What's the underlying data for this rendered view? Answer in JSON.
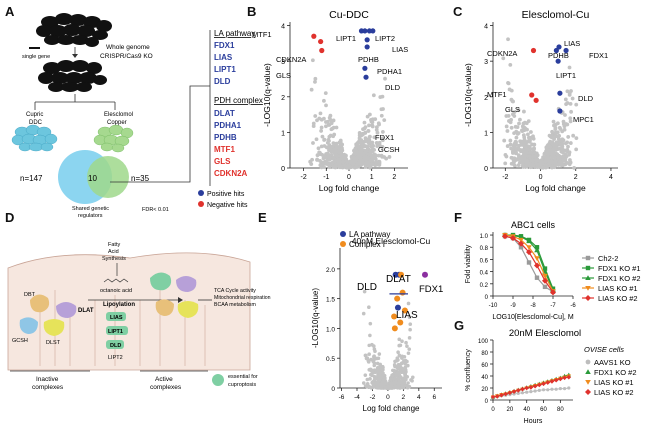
{
  "panel_letters": [
    "A",
    "B",
    "C",
    "D",
    "E",
    "F",
    "G"
  ],
  "panelA": {
    "single_gene": "single gene",
    "screen_line1": "Whole genome",
    "screen_line2": "CRISPR/Cas9 KO",
    "cupric_line1": "Cupric",
    "cupric_line2": "DDC",
    "eles_line1": "Elesclomol",
    "eles_line2": "Copper",
    "venn_left": "n=147",
    "venn_mid": "10",
    "venn_right": "n=35",
    "shared_line1": "Shared genetic",
    "shared_line2": "regulators",
    "fdr": "FDR< 0.01",
    "la_header": "LA pathway",
    "la_genes": [
      "FDX1",
      "LIAS",
      "LIPT1",
      "DLD"
    ],
    "pdh_header": "PDH complex",
    "pdh_genes": [
      "DLAT",
      "PDHA1",
      "PDHB"
    ],
    "neg_genes": [
      "MTF1",
      "GLS",
      "CDKN2A"
    ],
    "legend_pos": "Positive hits",
    "legend_neg": "Negative hits",
    "colors": {
      "pos": "#2a3d9c",
      "neg": "#e0322d",
      "venn_left": "#7fd0ee",
      "venn_right": "#9fd88b"
    }
  },
  "panelD": {
    "fatty1": "Fatty",
    "fatty2": "Acid",
    "fatty3": "Synthesis",
    "octanoic": "octanoic acid",
    "lipoylation": "Lipoylation",
    "chain": [
      "LIAS",
      "LIPT1",
      "DLD"
    ],
    "lipt2": "LIPT2",
    "dbt": "DBT",
    "dlat": "DLAT",
    "gcsh": "GCSH",
    "dlst": "DLST",
    "inactive1": "Inactive",
    "inactive2": "complexes",
    "active1": "Active",
    "active2": "complexes",
    "tca1": "TCA Cycle activity",
    "tca2": "Mitochondrial respiration",
    "tca3": "BCAA metabolism",
    "essential1": "essential for",
    "essential2": "cuproptosis"
  },
  "chart_data": [
    {
      "panel": "B",
      "type": "scatter",
      "title": "Cu-DDC",
      "xlabel": "Log fold change",
      "ylabel": "-LOG10(q-value)",
      "xlim": [
        -2.6,
        2.6
      ],
      "ylim": [
        0,
        4.1
      ],
      "xticks": [
        -2,
        -1,
        0,
        1,
        2
      ],
      "yticks": [
        0,
        1,
        2,
        3,
        4
      ],
      "series": [
        {
          "name": "Positive hits",
          "color": "#2a3d9c",
          "points": [
            {
              "label": "LIPT1",
              "x": 0.55,
              "y": 3.85
            },
            {
              "label": "LIPT2",
              "x": 0.9,
              "y": 3.85
            },
            {
              "label": "LIAS",
              "x": 1.05,
              "y": 3.85
            },
            {
              "label": "PDHB",
              "x": 0.7,
              "y": 3.85
            },
            {
              "label": "PDHA1",
              "x": 0.8,
              "y": 3.6
            },
            {
              "label": "DLD",
              "x": 0.8,
              "y": 3.4
            },
            {
              "label": "FDX1",
              "x": 0.7,
              "y": 2.8
            },
            {
              "label": "GCSH",
              "x": 0.75,
              "y": 2.55
            }
          ]
        },
        {
          "name": "Negative hits",
          "color": "#e0322d",
          "points": [
            {
              "label": "MTF1",
              "x": -1.55,
              "y": 3.7
            },
            {
              "label": "CDKN2A",
              "x": -1.25,
              "y": 3.55
            },
            {
              "label": "GLS",
              "x": -1.2,
              "y": 3.3
            }
          ]
        }
      ]
    },
    {
      "panel": "C",
      "type": "scatter",
      "title": "Elesclomol-Cu",
      "xlabel": "Log fold change",
      "ylabel": "-LOG10(q-value)",
      "xlim": [
        -2.7,
        4.4
      ],
      "ylim": [
        0,
        4.1
      ],
      "xticks": [
        -2,
        0,
        2,
        4
      ],
      "yticks": [
        0,
        1,
        2,
        3,
        4
      ],
      "series": [
        {
          "name": "Positive hits",
          "color": "#2a3d9c",
          "points": [
            {
              "label": "LIAS",
              "x": 1.05,
              "y": 3.4
            },
            {
              "label": "PDHB",
              "x": 0.9,
              "y": 3.3
            },
            {
              "label": "FDX1",
              "x": 1.45,
              "y": 3.3
            },
            {
              "label": "LIPT1",
              "x": 1.0,
              "y": 3.0
            },
            {
              "label": "DLD",
              "x": 1.1,
              "y": 2.1
            },
            {
              "label": "MPC1",
              "x": 1.1,
              "y": 1.6
            }
          ]
        },
        {
          "name": "Negative hits",
          "color": "#e0322d",
          "points": [
            {
              "label": "CDKN2A",
              "x": -0.4,
              "y": 3.3
            },
            {
              "label": "MTF1",
              "x": -0.5,
              "y": 2.05
            },
            {
              "label": "GLS",
              "x": -0.25,
              "y": 1.9
            }
          ]
        }
      ]
    },
    {
      "panel": "E",
      "type": "scatter",
      "title": "40nM Elesclomol-Cu",
      "xlabel": "Log fold change",
      "ylabel": "-LOG10(q-value)",
      "xlim": [
        -6.2,
        7.0
      ],
      "ylim": [
        0,
        2.35
      ],
      "xticks": [
        -6,
        -4,
        -2,
        0,
        2,
        4,
        6
      ],
      "yticks": [
        0,
        0.5,
        1.0,
        1.5,
        2.0
      ],
      "ytick_labels": [
        "0",
        "0.5",
        "1.0",
        "1.5",
        "2.0"
      ],
      "legend": [
        "LA  pathway",
        "Complex I"
      ],
      "series": [
        {
          "name": "LA  pathway",
          "color": "#2a3d9c",
          "points": [
            {
              "label": "DLD",
              "x": 1.0,
              "y": 1.9
            },
            {
              "label": "DLAT",
              "x": 1.45,
              "y": 1.9
            },
            {
              "label": "LIAS",
              "x": 1.3,
              "y": 1.35
            }
          ]
        },
        {
          "name": "Complex I",
          "color": "#f08c1e",
          "points": [
            {
              "x": 1.7,
              "y": 1.9
            },
            {
              "x": 1.2,
              "y": 1.5
            },
            {
              "x": 0.8,
              "y": 1.2
            },
            {
              "x": 1.6,
              "y": 1.1
            },
            {
              "x": 2.2,
              "y": 1.3
            },
            {
              "x": 0.9,
              "y": 1.0
            },
            {
              "x": 1.9,
              "y": 1.6
            }
          ]
        },
        {
          "name": "FDX1",
          "color": "#8b2fa0",
          "points": [
            {
              "label": "FDX1",
              "x": 4.8,
              "y": 1.9
            }
          ]
        }
      ]
    },
    {
      "panel": "F",
      "type": "line",
      "title": "ABC1 cells",
      "xlabel": "LOG10[Elesclomol-Cu], M",
      "ylabel": "Fold viability",
      "xlim": [
        -10,
        -6
      ],
      "ylim": [
        0,
        1.05
      ],
      "xticks": [
        -10,
        -9,
        -8,
        -7,
        -6
      ],
      "yticks": [
        0,
        0.2,
        0.4,
        0.6,
        0.8,
        1.0
      ],
      "ytick_labels": [
        "0",
        "0.2",
        "0.4",
        "0.6",
        "0.8",
        "1.0"
      ],
      "x": [
        -9.4,
        -9.0,
        -8.6,
        -8.2,
        -7.8,
        -7.4,
        -7.0
      ],
      "series": [
        {
          "name": "Ch2-2",
          "color": "#9a9a9a",
          "marker": "square",
          "values": [
            0.98,
            0.95,
            0.8,
            0.55,
            0.3,
            0.15,
            0.07
          ]
        },
        {
          "name": "FDX1 KO #1",
          "color": "#2a9a3a",
          "marker": "square",
          "values": [
            1.0,
            1.0,
            0.98,
            0.92,
            0.8,
            0.45,
            0.12
          ]
        },
        {
          "name": "FDX1 KO #2",
          "color": "#2a9a3a",
          "marker": "triangle",
          "values": [
            1.0,
            0.99,
            0.97,
            0.9,
            0.75,
            0.4,
            0.1
          ]
        },
        {
          "name": "LIAS KO #1",
          "color": "#f08c1e",
          "marker": "triangle-down",
          "values": [
            1.0,
            0.98,
            0.92,
            0.8,
            0.62,
            0.33,
            0.08
          ]
        },
        {
          "name": "LIAS KO #2",
          "color": "#e0322d",
          "marker": "diamond",
          "values": [
            0.98,
            0.95,
            0.86,
            0.72,
            0.5,
            0.25,
            0.06
          ]
        }
      ]
    },
    {
      "panel": "G",
      "type": "line",
      "title": "20nM Elesclomol",
      "xlabel": "Hours",
      "ylabel": "% confluency",
      "xlim": [
        0,
        95
      ],
      "ylim": [
        0,
        100
      ],
      "xticks": [
        0,
        20,
        40,
        60,
        80
      ],
      "yticks": [
        0,
        20,
        40,
        60,
        80,
        100
      ],
      "legend_title": "OVISE cells",
      "x": [
        0,
        5,
        10,
        15,
        20,
        25,
        30,
        35,
        40,
        45,
        50,
        55,
        60,
        65,
        70,
        75,
        80,
        85,
        90
      ],
      "series": [
        {
          "name": "AAVS1 KO",
          "color": "#bdbdbd",
          "marker": "circle",
          "values": [
            5,
            6,
            7,
            8,
            9,
            10,
            11,
            12,
            13,
            14,
            15,
            16,
            17,
            17,
            18,
            18,
            19,
            19,
            20
          ]
        },
        {
          "name": "FDX1 KO #2",
          "color": "#2a9a3a",
          "marker": "triangle",
          "values": [
            5,
            7,
            9,
            11,
            13,
            15,
            17,
            19,
            21,
            23,
            25,
            27,
            29,
            31,
            33,
            35,
            37,
            40,
            42
          ]
        },
        {
          "name": "LIAS KO #1",
          "color": "#f08c1e",
          "marker": "triangle-down",
          "values": [
            5,
            7,
            9,
            10,
            12,
            14,
            16,
            18,
            20,
            22,
            24,
            26,
            28,
            30,
            32,
            34,
            36,
            38,
            40
          ]
        },
        {
          "name": "LIAS KO #2",
          "color": "#e0322d",
          "marker": "diamond",
          "values": [
            5,
            6,
            8,
            10,
            12,
            14,
            16,
            18,
            20,
            21,
            23,
            25,
            27,
            29,
            31,
            33,
            35,
            37,
            38
          ]
        }
      ]
    }
  ]
}
